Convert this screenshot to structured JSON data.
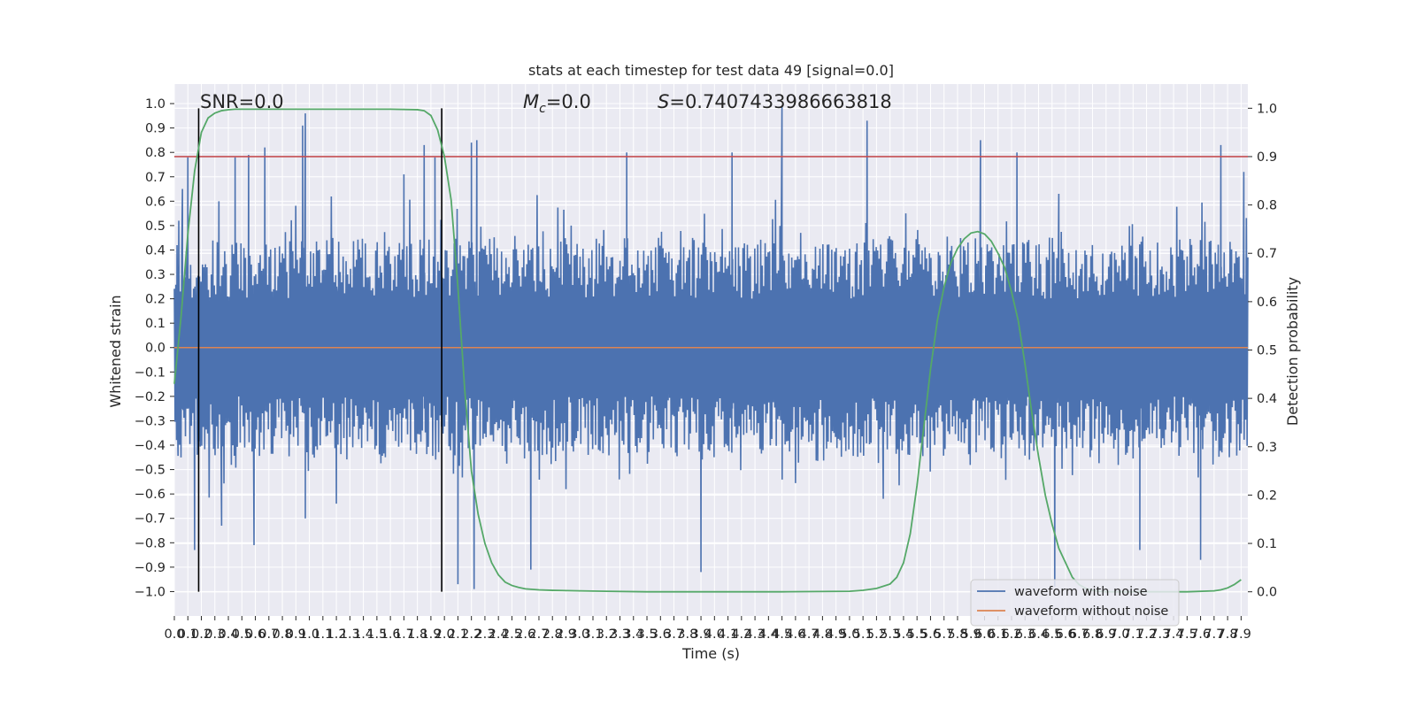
{
  "chart_data": {
    "type": "line",
    "title": "stats at each timestep for test data 49 [signal=0.0]",
    "xlabel": "Time (s)",
    "ylabel_left": "Whitened strain",
    "ylabel_right": "Detection probability",
    "xlim": [
      0.0,
      7.95
    ],
    "ylim_left": [
      -1.1,
      1.08
    ],
    "ylim_right": [
      -0.05,
      1.05
    ],
    "x_tick_values": [
      0.0,
      0.1,
      0.2,
      0.3,
      0.4,
      0.5,
      0.6,
      0.7,
      0.8,
      0.9,
      1.0,
      1.1,
      1.2,
      1.3,
      1.4,
      1.5,
      1.6,
      1.7,
      1.8,
      1.9,
      2.0,
      2.1,
      2.2,
      2.3,
      2.4,
      2.5,
      2.6,
      2.7,
      2.8,
      2.9,
      3.0,
      3.1,
      3.2,
      3.3,
      3.4,
      3.5,
      3.6,
      3.7,
      3.8,
      3.9,
      4.0,
      4.1,
      4.2,
      4.3,
      4.4,
      4.5,
      4.6,
      4.7,
      4.8,
      4.9,
      5.0,
      5.1,
      5.2,
      5.3,
      5.4,
      5.5,
      5.6,
      5.7,
      5.8,
      5.9,
      6.0,
      6.1,
      6.2,
      6.3,
      6.4,
      6.5,
      6.6,
      6.7,
      6.8,
      6.9,
      7.0,
      7.1,
      7.2,
      7.3,
      7.4,
      7.5,
      7.6,
      7.7,
      7.8,
      7.9
    ],
    "x_tick_labels": [
      "0.0",
      "0.1",
      "0.2",
      "0.3",
      "0.4",
      "0.5",
      "0.6",
      "0.7",
      "0.8",
      "0.9",
      "1.0",
      "1.1",
      "1.2",
      "1.3",
      "1.4",
      "1.5",
      "1.6",
      "1.7",
      "1.8",
      "1.9",
      "2.0",
      "2.1",
      "2.2",
      "2.3",
      "2.4",
      "2.5",
      "2.6",
      "2.7",
      "2.8",
      "2.9",
      "3.0",
      "3.1",
      "3.2",
      "3.3",
      "3.4",
      "3.5",
      "3.6",
      "3.7",
      "3.8",
      "3.9",
      "4.0",
      "4.1",
      "4.2",
      "4.3",
      "4.4",
      "4.5",
      "4.6",
      "4.7",
      "4.8",
      "4.9",
      "5.0",
      "5.1",
      "5.2",
      "5.3",
      "5.4",
      "5.5",
      "5.6",
      "5.7",
      "5.8",
      "5.9",
      "6.0",
      "6.1",
      "6.2",
      "6.3",
      "6.4",
      "6.5",
      "6.6",
      "6.7",
      "6.8",
      "6.9",
      "7.0",
      "7.1",
      "7.2",
      "7.3",
      "7.4",
      "7.5",
      "7.6",
      "7.7",
      "7.8",
      "7.9"
    ],
    "y_left_tick_values": [
      1.0,
      0.9,
      0.8,
      0.7,
      0.6,
      0.5,
      0.4,
      0.3,
      0.2,
      0.1,
      0.0,
      -0.1,
      -0.2,
      -0.3,
      -0.4,
      -0.5,
      -0.6,
      -0.7,
      -0.8,
      -0.9,
      -1.0
    ],
    "y_left_tick_labels": [
      "1.0",
      "0.9",
      "0.8",
      "0.7",
      "0.6",
      "0.5",
      "0.4",
      "0.3",
      "0.2",
      "0.1",
      "0.0",
      "−0.1",
      "−0.2",
      "−0.3",
      "−0.4",
      "−0.5",
      "−0.6",
      "−0.7",
      "−0.8",
      "−0.9",
      "−1.0"
    ],
    "y_right_tick_values": [
      1.0,
      0.9,
      0.8,
      0.7,
      0.6,
      0.5,
      0.4,
      0.3,
      0.2,
      0.1,
      0.0
    ],
    "y_right_tick_labels": [
      "1.0",
      "0.9",
      "0.8",
      "0.7",
      "0.6",
      "0.5",
      "0.4",
      "0.3",
      "0.2",
      "0.1",
      "0.0"
    ],
    "annotations": {
      "snr": "SNR=0.0",
      "mc_symbol": "M",
      "mc_sub": "c",
      "mc_value": "=0.0",
      "s_symbol": "S",
      "s_value": "=0.7407433986663818"
    },
    "vertical_markers_x": [
      0.18,
      1.98
    ],
    "threshold_right": 0.9,
    "series": [
      {
        "name": "waveform with noise",
        "color": "#4c72b0",
        "axis": "left",
        "kind": "noise",
        "peaks_high": [
          [
            0.02,
            0.42
          ],
          [
            0.06,
            0.65
          ],
          [
            0.1,
            0.78
          ],
          [
            0.33,
            0.6
          ],
          [
            0.45,
            0.78
          ],
          [
            0.55,
            0.79
          ],
          [
            0.67,
            0.82
          ],
          [
            0.95,
            0.91
          ],
          [
            0.97,
            0.96
          ],
          [
            1.7,
            0.71
          ],
          [
            1.85,
            0.83
          ],
          [
            1.93,
            0.78
          ],
          [
            2.2,
            0.84
          ],
          [
            2.24,
            0.85
          ],
          [
            3.35,
            0.8
          ],
          [
            4.13,
            0.8
          ],
          [
            4.5,
            0.99
          ],
          [
            5.13,
            0.93
          ],
          [
            5.97,
            0.85
          ],
          [
            6.24,
            0.8
          ],
          [
            6.55,
            0.63
          ],
          [
            7.75,
            0.83
          ],
          [
            7.92,
            0.72
          ]
        ],
        "peaks_low": [
          [
            0.15,
            -0.83
          ],
          [
            0.35,
            -0.73
          ],
          [
            0.59,
            -0.81
          ],
          [
            0.97,
            -0.7
          ],
          [
            1.2,
            -0.64
          ],
          [
            2.1,
            -0.97
          ],
          [
            2.22,
            -0.99
          ],
          [
            2.64,
            -0.91
          ],
          [
            3.9,
            -0.92
          ],
          [
            5.25,
            -0.62
          ],
          [
            6.52,
            -0.98
          ],
          [
            7.15,
            -0.83
          ],
          [
            7.6,
            -0.87
          ]
        ]
      },
      {
        "name": "waveform without noise",
        "color": "#dd8452",
        "axis": "left",
        "x": [
          0.0,
          7.95
        ],
        "y": [
          0.0,
          0.0
        ]
      },
      {
        "name": "detection probability",
        "color": "#55a868",
        "axis": "right",
        "x": [
          0.0,
          0.05,
          0.1,
          0.15,
          0.2,
          0.25,
          0.3,
          0.35,
          0.4,
          0.45,
          0.5,
          0.6,
          0.8,
          1.0,
          1.2,
          1.4,
          1.6,
          1.8,
          1.85,
          1.9,
          1.95,
          2.0,
          2.05,
          2.1,
          2.15,
          2.2,
          2.25,
          2.3,
          2.35,
          2.4,
          2.45,
          2.5,
          2.55,
          2.6,
          2.7,
          2.8,
          3.0,
          3.2,
          3.5,
          4.0,
          4.5,
          5.0,
          5.1,
          5.2,
          5.3,
          5.35,
          5.4,
          5.45,
          5.5,
          5.55,
          5.6,
          5.65,
          5.7,
          5.75,
          5.8,
          5.85,
          5.9,
          5.95,
          6.0,
          6.05,
          6.1,
          6.15,
          6.2,
          6.25,
          6.3,
          6.35,
          6.4,
          6.45,
          6.5,
          6.55,
          6.6,
          6.65,
          6.7,
          6.75,
          6.8,
          6.85,
          6.9,
          7.0,
          7.2,
          7.5,
          7.7,
          7.75,
          7.8,
          7.85,
          7.9
        ],
        "y": [
          0.43,
          0.57,
          0.74,
          0.87,
          0.95,
          0.98,
          0.99,
          0.995,
          0.997,
          0.998,
          0.998,
          0.998,
          0.998,
          0.998,
          0.998,
          0.998,
          0.998,
          0.997,
          0.995,
          0.985,
          0.955,
          0.9,
          0.81,
          0.63,
          0.42,
          0.25,
          0.16,
          0.1,
          0.06,
          0.035,
          0.02,
          0.013,
          0.009,
          0.006,
          0.004,
          0.003,
          0.002,
          0.001,
          0.0,
          0.0,
          0.0,
          0.001,
          0.003,
          0.007,
          0.016,
          0.03,
          0.06,
          0.12,
          0.22,
          0.34,
          0.46,
          0.56,
          0.63,
          0.68,
          0.71,
          0.73,
          0.742,
          0.745,
          0.74,
          0.725,
          0.7,
          0.67,
          0.62,
          0.56,
          0.47,
          0.37,
          0.28,
          0.2,
          0.14,
          0.09,
          0.06,
          0.03,
          0.015,
          0.007,
          0.003,
          0.001,
          0.0,
          0.0,
          0.0,
          0.0,
          0.002,
          0.004,
          0.008,
          0.015,
          0.025
        ]
      }
    ],
    "legend": {
      "position": "lower-right",
      "entries": [
        "waveform with noise",
        "waveform without noise"
      ]
    },
    "colors": {
      "background": "#eaeaf2",
      "grid": "#ffffff",
      "threshold": "#c44e52",
      "marker": "#000000"
    }
  }
}
